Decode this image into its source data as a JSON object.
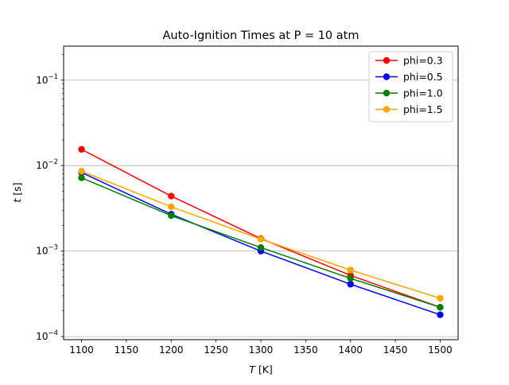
{
  "chart_data": {
    "type": "line",
    "title": "Auto-Ignition Times at P = 10 atm",
    "xlabel": {
      "var": "T",
      "unit": " [K]"
    },
    "ylabel": {
      "var": "t",
      "unit": " [s]"
    },
    "x_scale": "linear",
    "y_scale": "log",
    "xlim": [
      1080,
      1520
    ],
    "ylim": [
      9.2e-05,
      0.25
    ],
    "x_ticks": [
      1100,
      1150,
      1200,
      1250,
      1300,
      1350,
      1400,
      1450,
      1500
    ],
    "y_ticks": [
      {
        "value": 0.0001,
        "base": "10",
        "exp": "−4"
      },
      {
        "value": 0.001,
        "base": "10",
        "exp": "−3"
      },
      {
        "value": 0.01,
        "base": "10",
        "exp": "−2"
      },
      {
        "value": 0.1,
        "base": "10",
        "exp": "−1"
      }
    ],
    "grid": {
      "y_major": true,
      "x": false
    },
    "legend_position": "top-right",
    "x": [
      1100,
      1200,
      1300,
      1400,
      1500
    ],
    "series": [
      {
        "name": "phi=0.3",
        "color": "#ff0000",
        "values": [
          0.0155,
          0.0044,
          0.0014,
          0.00052,
          0.00022
        ]
      },
      {
        "name": "phi=0.5",
        "color": "#0000ff",
        "values": [
          0.0083,
          0.0027,
          0.001,
          0.00041,
          0.00018
        ]
      },
      {
        "name": "phi=1.0",
        "color": "#008000",
        "values": [
          0.0072,
          0.0026,
          0.0011,
          0.00048,
          0.00022
        ]
      },
      {
        "name": "phi=1.5",
        "color": "#ffa500",
        "values": [
          0.0086,
          0.0033,
          0.00138,
          0.0006,
          0.00028
        ]
      }
    ]
  }
}
